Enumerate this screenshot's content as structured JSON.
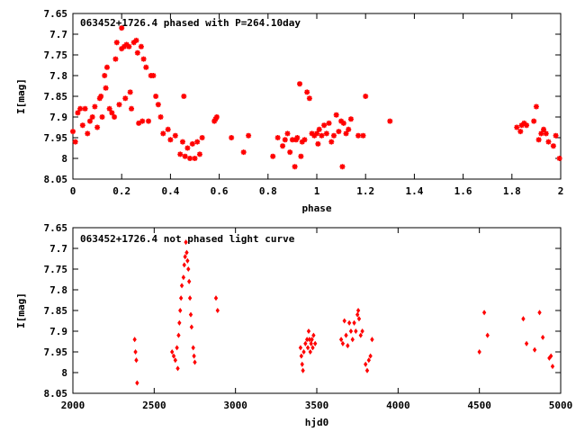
{
  "chart_data": [
    {
      "type": "scatter",
      "title": "063452+1726.4 phased with P=264.10day",
      "xlabel": "phase",
      "ylabel": "I[mag]",
      "xlim": [
        0,
        2
      ],
      "ylim": [
        7.65,
        8.05
      ],
      "y_inverted": true,
      "x_ticks": [
        "0",
        "0.2",
        "0.4",
        "0.6",
        "0.8",
        "1",
        "1.2",
        "1.4",
        "1.6",
        "1.8",
        "2"
      ],
      "y_ticks": [
        "7.65",
        "7.7",
        "7.75",
        "7.8",
        "7.85",
        "7.9",
        "7.95",
        "8",
        "8.05"
      ],
      "grid": false,
      "color": "#ff0000",
      "marker": "star",
      "points": [
        [
          0.0,
          7.935
        ],
        [
          0.01,
          7.96
        ],
        [
          0.02,
          7.89
        ],
        [
          0.03,
          7.88
        ],
        [
          0.04,
          7.92
        ],
        [
          0.05,
          7.88
        ],
        [
          0.06,
          7.94
        ],
        [
          0.07,
          7.91
        ],
        [
          0.08,
          7.9
        ],
        [
          0.09,
          7.875
        ],
        [
          0.1,
          7.925
        ],
        [
          0.11,
          7.855
        ],
        [
          0.115,
          7.85
        ],
        [
          0.12,
          7.9
        ],
        [
          0.13,
          7.8
        ],
        [
          0.135,
          7.83
        ],
        [
          0.14,
          7.78
        ],
        [
          0.15,
          7.88
        ],
        [
          0.16,
          7.89
        ],
        [
          0.17,
          7.9
        ],
        [
          0.175,
          7.76
        ],
        [
          0.18,
          7.72
        ],
        [
          0.19,
          7.87
        ],
        [
          0.2,
          7.685
        ],
        [
          0.2,
          7.735
        ],
        [
          0.21,
          7.73
        ],
        [
          0.215,
          7.855
        ],
        [
          0.22,
          7.725
        ],
        [
          0.23,
          7.73
        ],
        [
          0.235,
          7.84
        ],
        [
          0.24,
          7.88
        ],
        [
          0.25,
          7.72
        ],
        [
          0.26,
          7.715
        ],
        [
          0.265,
          7.745
        ],
        [
          0.27,
          7.915
        ],
        [
          0.28,
          7.73
        ],
        [
          0.285,
          7.91
        ],
        [
          0.29,
          7.76
        ],
        [
          0.3,
          7.78
        ],
        [
          0.31,
          7.91
        ],
        [
          0.32,
          7.8
        ],
        [
          0.33,
          7.8
        ],
        [
          0.34,
          7.85
        ],
        [
          0.35,
          7.87
        ],
        [
          0.36,
          7.9
        ],
        [
          0.37,
          7.94
        ],
        [
          0.39,
          7.93
        ],
        [
          0.4,
          7.955
        ],
        [
          0.42,
          7.945
        ],
        [
          0.44,
          7.99
        ],
        [
          0.45,
          7.96
        ],
        [
          0.455,
          7.85
        ],
        [
          0.46,
          7.995
        ],
        [
          0.47,
          7.975
        ],
        [
          0.48,
          8.0
        ],
        [
          0.49,
          7.965
        ],
        [
          0.5,
          8.0
        ],
        [
          0.51,
          7.96
        ],
        [
          0.52,
          7.99
        ],
        [
          0.53,
          7.95
        ],
        [
          0.58,
          7.91
        ],
        [
          0.585,
          7.905
        ],
        [
          0.59,
          7.9
        ],
        [
          0.65,
          7.95
        ],
        [
          0.7,
          7.985
        ],
        [
          0.72,
          7.945
        ],
        [
          0.82,
          7.995
        ],
        [
          0.84,
          7.95
        ],
        [
          0.86,
          7.97
        ],
        [
          0.87,
          7.955
        ],
        [
          0.88,
          7.94
        ],
        [
          0.89,
          7.985
        ],
        [
          0.9,
          7.955
        ],
        [
          0.91,
          8.02
        ],
        [
          0.915,
          7.955
        ],
        [
          0.92,
          7.95
        ],
        [
          0.93,
          7.82
        ],
        [
          0.935,
          7.995
        ],
        [
          0.94,
          7.96
        ],
        [
          0.95,
          7.955
        ],
        [
          0.96,
          7.84
        ],
        [
          0.97,
          7.855
        ],
        [
          0.98,
          7.94
        ],
        [
          0.99,
          7.945
        ],
        [
          1.0,
          7.94
        ],
        [
          1.005,
          7.965
        ],
        [
          1.01,
          7.93
        ],
        [
          1.02,
          7.945
        ],
        [
          1.03,
          7.92
        ],
        [
          1.04,
          7.94
        ],
        [
          1.05,
          7.915
        ],
        [
          1.06,
          7.96
        ],
        [
          1.07,
          7.945
        ],
        [
          1.08,
          7.895
        ],
        [
          1.09,
          7.935
        ],
        [
          1.1,
          7.91
        ],
        [
          1.105,
          8.02
        ],
        [
          1.11,
          7.915
        ],
        [
          1.12,
          7.94
        ],
        [
          1.13,
          7.93
        ],
        [
          1.14,
          7.905
        ],
        [
          1.17,
          7.945
        ],
        [
          1.19,
          7.945
        ],
        [
          1.2,
          7.85
        ],
        [
          1.3,
          7.91
        ],
        [
          1.82,
          7.925
        ],
        [
          1.835,
          7.935
        ],
        [
          1.84,
          7.92
        ],
        [
          1.85,
          7.915
        ],
        [
          1.86,
          7.92
        ],
        [
          1.89,
          7.91
        ],
        [
          1.9,
          7.875
        ],
        [
          1.91,
          7.955
        ],
        [
          1.92,
          7.94
        ],
        [
          1.93,
          7.93
        ],
        [
          1.94,
          7.94
        ],
        [
          1.95,
          7.96
        ],
        [
          1.97,
          7.97
        ],
        [
          1.98,
          7.945
        ],
        [
          1.995,
          8.0
        ]
      ]
    },
    {
      "type": "scatter",
      "title": "063452+1726.4 not phased light curve",
      "xlabel": "hjd0",
      "ylabel": "I[mag]",
      "xlim": [
        2000,
        5000
      ],
      "ylim": [
        7.65,
        8.05
      ],
      "y_inverted": true,
      "x_ticks": [
        "2000",
        "2500",
        "3000",
        "3500",
        "4000",
        "4500",
        "5000"
      ],
      "y_ticks": [
        "7.65",
        "7.7",
        "7.75",
        "7.8",
        "7.85",
        "7.9",
        "7.95",
        "8",
        "8.05"
      ],
      "grid": false,
      "color": "#ff0000",
      "marker": "diamond",
      "points": [
        [
          2380,
          7.92
        ],
        [
          2385,
          7.95
        ],
        [
          2390,
          7.97
        ],
        [
          2395,
          8.025
        ],
        [
          2610,
          7.95
        ],
        [
          2620,
          7.96
        ],
        [
          2630,
          7.97
        ],
        [
          2640,
          7.94
        ],
        [
          2645,
          7.99
        ],
        [
          2650,
          7.91
        ],
        [
          2655,
          7.88
        ],
        [
          2660,
          7.85
        ],
        [
          2665,
          7.82
        ],
        [
          2670,
          7.79
        ],
        [
          2680,
          7.77
        ],
        [
          2685,
          7.74
        ],
        [
          2690,
          7.72
        ],
        [
          2695,
          7.685
        ],
        [
          2700,
          7.71
        ],
        [
          2705,
          7.73
        ],
        [
          2710,
          7.75
        ],
        [
          2715,
          7.78
        ],
        [
          2720,
          7.82
        ],
        [
          2725,
          7.86
        ],
        [
          2730,
          7.89
        ],
        [
          2740,
          7.94
        ],
        [
          2745,
          7.96
        ],
        [
          2750,
          7.975
        ],
        [
          2880,
          7.82
        ],
        [
          2890,
          7.85
        ],
        [
          3400,
          7.94
        ],
        [
          3405,
          7.96
        ],
        [
          3410,
          7.98
        ],
        [
          3415,
          7.995
        ],
        [
          3420,
          7.95
        ],
        [
          3430,
          7.93
        ],
        [
          3440,
          7.92
        ],
        [
          3445,
          7.94
        ],
        [
          3450,
          7.9
        ],
        [
          3455,
          7.92
        ],
        [
          3460,
          7.95
        ],
        [
          3465,
          7.93
        ],
        [
          3470,
          7.92
        ],
        [
          3475,
          7.94
        ],
        [
          3480,
          7.91
        ],
        [
          3490,
          7.93
        ],
        [
          3650,
          7.92
        ],
        [
          3660,
          7.93
        ],
        [
          3670,
          7.875
        ],
        [
          3680,
          7.91
        ],
        [
          3690,
          7.935
        ],
        [
          3700,
          7.88
        ],
        [
          3710,
          7.9
        ],
        [
          3720,
          7.92
        ],
        [
          3730,
          7.88
        ],
        [
          3740,
          7.9
        ],
        [
          3750,
          7.86
        ],
        [
          3755,
          7.85
        ],
        [
          3760,
          7.87
        ],
        [
          3770,
          7.91
        ],
        [
          3780,
          7.9
        ],
        [
          3800,
          7.98
        ],
        [
          3810,
          7.995
        ],
        [
          3820,
          7.97
        ],
        [
          3830,
          7.96
        ],
        [
          3840,
          7.92
        ],
        [
          4500,
          7.95
        ],
        [
          4530,
          7.855
        ],
        [
          4550,
          7.91
        ],
        [
          4770,
          7.87
        ],
        [
          4790,
          7.93
        ],
        [
          4840,
          7.945
        ],
        [
          4870,
          7.855
        ],
        [
          4890,
          7.915
        ],
        [
          4930,
          7.965
        ],
        [
          4940,
          7.96
        ],
        [
          4950,
          7.985
        ]
      ]
    }
  ]
}
